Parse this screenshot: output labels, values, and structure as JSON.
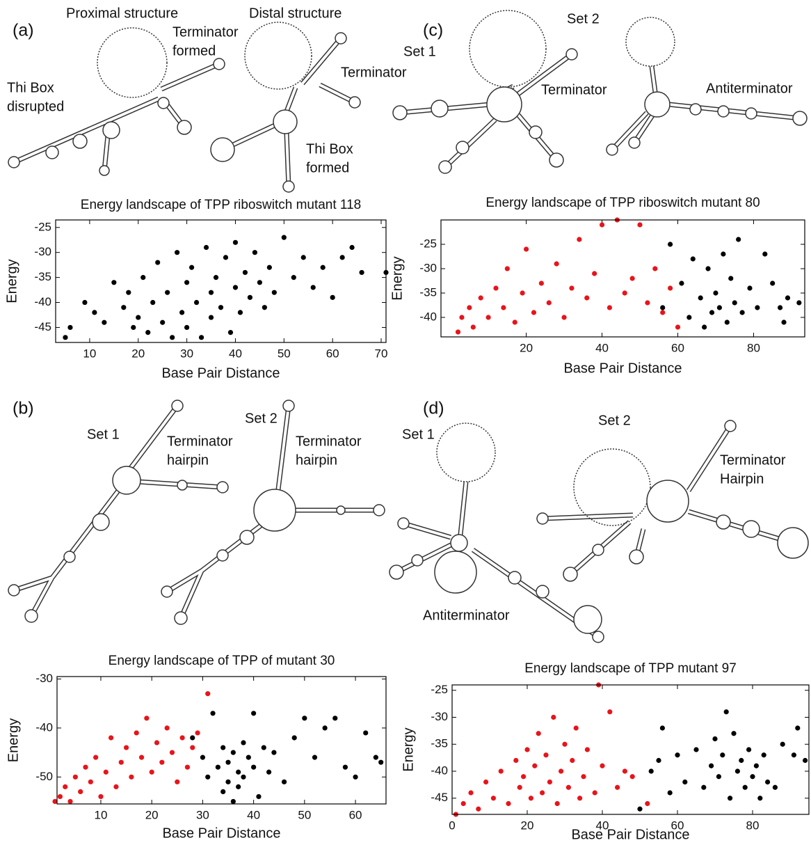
{
  "panels": [
    {
      "label": "(a)",
      "annotations": [
        [
          "Proximal structure"
        ],
        [
          "Terminator",
          "formed"
        ],
        [
          "Thi Box",
          "disrupted"
        ],
        [
          "Distal structure"
        ],
        [
          "Terminator"
        ],
        [
          "Thi Box",
          "formed"
        ]
      ]
    },
    {
      "label": "(c)",
      "annotations": [
        [
          "Set 1"
        ],
        [
          "Set 2"
        ],
        [
          "Terminator"
        ],
        [
          "Antiterminator"
        ]
      ]
    },
    {
      "label": "(b)",
      "annotations": [
        [
          "Set 1"
        ],
        [
          "Terminator",
          "hairpin"
        ],
        [
          "Set 2"
        ],
        [
          "Terminator",
          "hairpin"
        ]
      ]
    },
    {
      "label": "(d)",
      "annotations": [
        [
          "Set 1"
        ],
        [
          "Set 2"
        ],
        [
          "Terminator",
          "Hairpin"
        ],
        [
          "Antiterminator"
        ]
      ]
    }
  ],
  "chart_data": [
    {
      "type": "scatter",
      "title": "Energy landscape of TPP riboswitch mutant 118",
      "x_label": "Base Pair Distance",
      "y_label": "Energy",
      "xlim": [
        3,
        71
      ],
      "ylim": [
        -48,
        -23.5
      ],
      "xticks": [
        10,
        20,
        30,
        40,
        50,
        60,
        70
      ],
      "yticks": [
        -45,
        -40,
        -35,
        -30,
        -25
      ],
      "series": [
        {
          "color": "#000000",
          "x": [
            5,
            6,
            9,
            11,
            13,
            15,
            17,
            18,
            19,
            20,
            21,
            22,
            23,
            24,
            25,
            26,
            27,
            28,
            29,
            30,
            30,
            31,
            32,
            33,
            34,
            35,
            35,
            36,
            37,
            38,
            39,
            40,
            40,
            41,
            42,
            43,
            44,
            45,
            46,
            47,
            48,
            50,
            52,
            54,
            56,
            58,
            60,
            62,
            64,
            66,
            71
          ],
          "values": [
            -47,
            -45,
            -40,
            -42,
            -44,
            -36,
            -41,
            -38,
            -45,
            -43,
            -35,
            -46,
            -40,
            -32,
            -44,
            -38,
            -47,
            -30,
            -42,
            -36,
            -45,
            -33,
            -40,
            -47,
            -29,
            -38,
            -43,
            -35,
            -41,
            -31,
            -46,
            -37,
            -28,
            -42,
            -34,
            -39,
            -30,
            -36,
            -41,
            -33,
            -38,
            -27,
            -35,
            -31,
            -37,
            -33,
            -39,
            -31,
            -29,
            -34,
            -34
          ]
        }
      ]
    },
    {
      "type": "scatter",
      "title": "Energy landscape of TPP riboswitch mutant 80",
      "x_label": "Base Pair Distance",
      "y_label": "Energy",
      "xlim": [
        -2.5,
        93.5
      ],
      "ylim": [
        -44,
        -20
      ],
      "xticks": [
        20,
        40,
        60,
        80
      ],
      "yticks": [
        -40,
        -35,
        -30,
        -25
      ],
      "series": [
        {
          "color": "#000000",
          "x": [
            56,
            58,
            61,
            63,
            64,
            66,
            67,
            68,
            69,
            70,
            71,
            72,
            73,
            74,
            75,
            76,
            77,
            79,
            81,
            83,
            85,
            87,
            88,
            89,
            92
          ],
          "values": [
            -38,
            -25,
            -33,
            -40,
            -28,
            -36,
            -42,
            -30,
            -39,
            -35,
            -38,
            -27,
            -41,
            -32,
            -37,
            -24,
            -39,
            -34,
            -38,
            -27,
            -33,
            -38,
            -41,
            -36,
            -37
          ]
        },
        {
          "color": "#e8141a",
          "x": [
            2,
            3,
            5,
            6,
            8,
            10,
            12,
            14,
            15,
            17,
            19,
            20,
            22,
            24,
            26,
            28,
            30,
            32,
            34,
            36,
            38,
            40,
            42,
            44,
            46,
            48,
            50,
            52,
            54,
            56,
            58,
            60
          ],
          "values": [
            -43,
            -40,
            -38,
            -42,
            -36,
            -40,
            -34,
            -38,
            -30,
            -41,
            -35,
            -26,
            -39,
            -33,
            -37,
            -29,
            -40,
            -34,
            -24,
            -36,
            -31,
            -21,
            -38,
            -20,
            -35,
            -32,
            -21,
            -37,
            -30,
            -39,
            -34,
            -42
          ]
        }
      ]
    },
    {
      "type": "scatter",
      "title": "Energy landscape of TPP of mutant 30",
      "x_label": "Base Pair Distance",
      "y_label": "Energy",
      "xlim": [
        1.4,
        66
      ],
      "ylim": [
        -55.5,
        -29.5
      ],
      "xticks": [
        10,
        20,
        30,
        40,
        50,
        60
      ],
      "yticks": [
        -50,
        -40,
        -30
      ],
      "series": [
        {
          "color": "#000000",
          "x": [
            28,
            30,
            31,
            32,
            33,
            34,
            34,
            35,
            35,
            36,
            36,
            37,
            37,
            38,
            38,
            39,
            40,
            40,
            41,
            42,
            43,
            44,
            46,
            48,
            50,
            52,
            54,
            56,
            58,
            60,
            62,
            64,
            65
          ],
          "values": [
            -42,
            -46,
            -50,
            -37,
            -48,
            -53,
            -44,
            -51,
            -47,
            -45,
            -55,
            -49,
            -52,
            -43,
            -50,
            -46,
            -37,
            -48,
            -54,
            -44,
            -49,
            -45,
            -51,
            -42,
            -38,
            -46,
            -40,
            -38,
            -48,
            -50,
            -41,
            -46,
            -47
          ]
        },
        {
          "color": "#e8141a",
          "x": [
            1,
            2,
            3,
            4,
            5,
            6,
            7,
            8,
            9,
            10,
            11,
            12,
            13,
            14,
            15,
            16,
            17,
            18,
            19,
            20,
            21,
            22,
            23,
            24,
            25,
            26,
            27,
            28,
            29,
            31
          ],
          "values": [
            -55,
            -54,
            -52,
            -55,
            -50,
            -53,
            -48,
            -51,
            -46,
            -54,
            -49,
            -42,
            -52,
            -47,
            -44,
            -50,
            -41,
            -46,
            -38,
            -49,
            -43,
            -47,
            -40,
            -45,
            -51,
            -42,
            -48,
            -44,
            -41,
            -33
          ]
        }
      ]
    },
    {
      "type": "scatter",
      "title": "Energy landscape of TPP mutant 97",
      "x_label": "Base Pair Distance",
      "y_label": "Energy",
      "xlim": [
        0,
        95
      ],
      "ylim": [
        -48,
        -24
      ],
      "xticks": [
        0,
        20,
        40,
        60,
        80
      ],
      "yticks": [
        -45,
        -40,
        -35,
        -30,
        -25
      ],
      "series": [
        {
          "color": "#000000",
          "x": [
            50,
            53,
            55,
            56,
            58,
            60,
            62,
            65,
            67,
            69,
            70,
            71,
            72,
            73,
            74,
            75,
            76,
            77,
            78,
            79,
            80,
            81,
            82,
            83,
            84,
            86,
            88,
            91,
            92,
            94
          ],
          "values": [
            -47,
            -40,
            -38,
            -32,
            -44,
            -37,
            -42,
            -36,
            -43,
            -39,
            -34,
            -41,
            -37,
            -29,
            -45,
            -33,
            -40,
            -38,
            -43,
            -36,
            -41,
            -39,
            -45,
            -37,
            -42,
            -43,
            -35,
            -37,
            -32,
            -38
          ]
        },
        {
          "color": "#e8141a",
          "x": [
            1,
            3,
            5,
            7,
            9,
            11,
            13,
            15,
            17,
            18,
            19,
            20,
            21,
            22,
            23,
            24,
            25,
            26,
            27,
            28,
            29,
            30,
            31,
            32,
            33,
            34,
            35,
            36,
            38,
            39,
            40,
            42,
            44,
            46,
            48,
            52
          ],
          "values": [
            -48,
            -46,
            -44,
            -47,
            -42,
            -45,
            -40,
            -46,
            -38,
            -43,
            -41,
            -36,
            -45,
            -39,
            -33,
            -44,
            -37,
            -42,
            -30,
            -46,
            -40,
            -35,
            -43,
            -38,
            -32,
            -45,
            -41,
            -36,
            -44,
            -24,
            -39,
            -29,
            -43,
            -40,
            -41,
            -46
          ]
        }
      ]
    }
  ]
}
